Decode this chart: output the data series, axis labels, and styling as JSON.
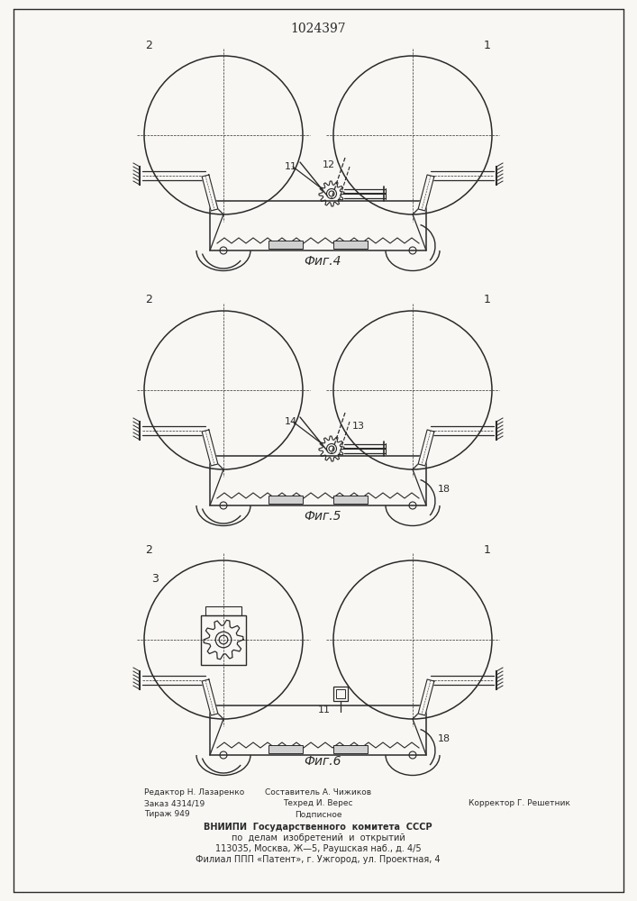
{
  "title": "1024397",
  "bg_color": "#f8f7f4",
  "line_color": "#2a2a2a",
  "fig4_label": "Фиг.4",
  "fig5_label": "Фиг.5",
  "fig6_label": "Фиг.6",
  "footer": {
    "line1_left": "Редактор Н. Лазаренко",
    "line1_mid": "Составитель А. Чижиков",
    "line2_left": "Заказ 4314/19",
    "line2_mid": "Техред И. Верес",
    "line2_right": "Корректор Г. Решетник",
    "line3_left": "Тираж 949",
    "line3_mid": "Подписное",
    "line4": "ВНИИПИ  Государственного  комитета  СССР",
    "line5": "по  делам  изобретений  и  открытий",
    "line6": "113035, Москва, Ж—5, Раушская наб., д. 4/5",
    "line7": "Филиал ППП «Патент», г. Ужгород, ул. Проектная, 4"
  }
}
